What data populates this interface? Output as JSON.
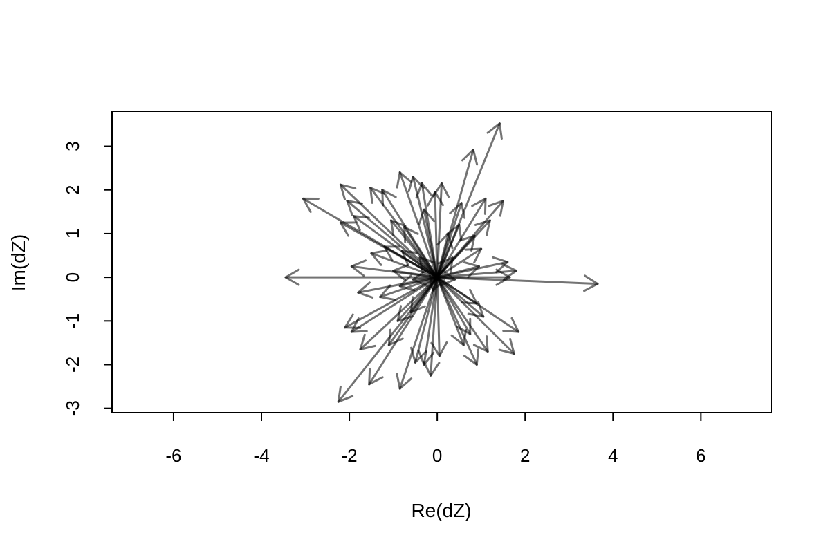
{
  "chart_data": {
    "type": "scatter",
    "title": "",
    "xlabel": "Re(dZ)",
    "ylabel": "Im(dZ)",
    "xlim": [
      -7.4,
      7.6
    ],
    "ylim": [
      -3.1,
      3.8
    ],
    "xticks": [
      -6,
      -4,
      -2,
      0,
      2,
      4,
      6
    ],
    "yticks": [
      -3,
      -2,
      -1,
      0,
      1,
      2,
      3
    ],
    "grid": false,
    "origin": [
      0,
      0
    ],
    "series": [
      {
        "values": [
          [
            1.42,
            3.52
          ],
          [
            0.82,
            2.92
          ],
          [
            -3.05,
            1.8
          ],
          [
            -3.45,
            0.0
          ],
          [
            3.65,
            -0.15
          ],
          [
            -2.25,
            -2.85
          ],
          [
            -2.2,
            2.12
          ],
          [
            -2.2,
            1.25
          ],
          [
            -1.9,
            1.4
          ],
          [
            -1.52,
            2.05
          ],
          [
            -1.25,
            2.0
          ],
          [
            -0.85,
            2.4
          ],
          [
            -0.55,
            2.3
          ],
          [
            -0.35,
            2.15
          ],
          [
            0.1,
            2.15
          ],
          [
            -0.05,
            1.95
          ],
          [
            0.55,
            1.7
          ],
          [
            1.1,
            1.8
          ],
          [
            1.5,
            1.75
          ],
          [
            -2.05,
            1.75
          ],
          [
            -1.95,
            0.25
          ],
          [
            -1.5,
            0.55
          ],
          [
            -1.2,
            0.7
          ],
          [
            -0.8,
            0.6
          ],
          [
            1.6,
            0.35
          ],
          [
            1.8,
            0.15
          ],
          [
            1.65,
            0.0
          ],
          [
            1.0,
            0.65
          ],
          [
            0.85,
            0.95
          ],
          [
            0.5,
            1.2
          ],
          [
            -1.8,
            -0.35
          ],
          [
            -1.3,
            -0.45
          ],
          [
            -0.85,
            -0.2
          ],
          [
            -2.1,
            -1.15
          ],
          [
            -1.95,
            -1.25
          ],
          [
            -1.75,
            -1.65
          ],
          [
            -1.55,
            -2.45
          ],
          [
            -1.1,
            -1.55
          ],
          [
            -0.85,
            -2.55
          ],
          [
            -0.5,
            -1.95
          ],
          [
            -0.3,
            -2.0
          ],
          [
            -0.15,
            -2.25
          ],
          [
            0.05,
            -1.8
          ],
          [
            0.6,
            -1.55
          ],
          [
            0.75,
            -1.3
          ],
          [
            0.9,
            -2.0
          ],
          [
            1.15,
            -1.7
          ],
          [
            1.75,
            -1.75
          ],
          [
            1.85,
            -1.25
          ],
          [
            1.05,
            -0.9
          ],
          [
            0.9,
            -0.6
          ],
          [
            -0.6,
            -0.8
          ],
          [
            -0.4,
            0.45
          ],
          [
            0.35,
            0.45
          ],
          [
            -1.05,
            1.3
          ],
          [
            -0.3,
            1.55
          ],
          [
            0.25,
            1.0
          ],
          [
            0.95,
            0.25
          ],
          [
            -0.9,
            -1.0
          ],
          [
            -0.1,
            -0.3
          ],
          [
            -0.55,
            -0.05
          ],
          [
            0.4,
            -0.05
          ],
          [
            -1.0,
            0.15
          ],
          [
            1.2,
            1.3
          ],
          [
            -0.75,
            1.15
          ]
        ]
      }
    ]
  }
}
